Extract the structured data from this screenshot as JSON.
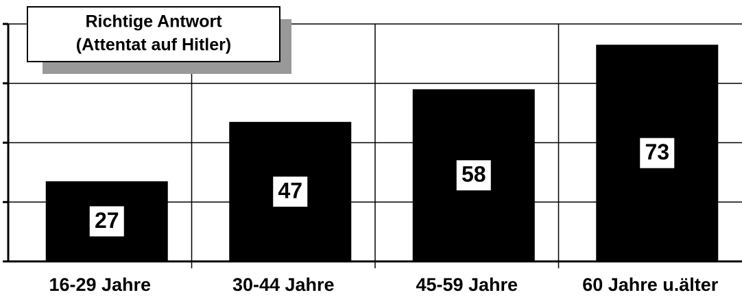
{
  "chart_data": {
    "type": "bar",
    "title": [
      "Richtige Antwort",
      "(Attentat auf Hitler)"
    ],
    "categories": [
      "16-29 Jahre",
      "30-44 Jahre",
      "45-59 Jahre",
      "60 Jahre u.älter"
    ],
    "values": [
      27,
      47,
      58,
      73
    ],
    "color": "#000000",
    "ylim": [
      0,
      80
    ],
    "yticks": [
      0,
      20,
      40,
      60,
      80
    ],
    "grid": true
  }
}
